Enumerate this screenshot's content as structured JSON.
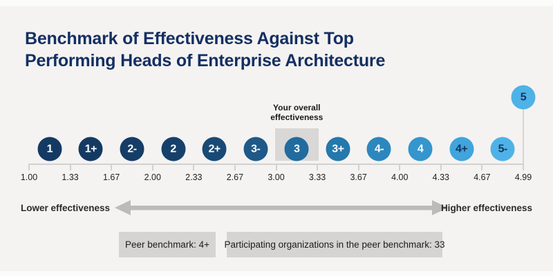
{
  "header": {
    "title_line1": "Benchmark of Effectiveness Against Top",
    "title_line2": "Performing Heads of Enterprise Architecture",
    "title_color": "#142f63"
  },
  "chart_data": {
    "type": "scale",
    "title": "Benchmark of Effectiveness Against Top Performing Heads of Enterprise Architecture",
    "axis": {
      "ticks": [
        "1.00",
        "1.33",
        "1.67",
        "2.00",
        "2.33",
        "2.67",
        "3.00",
        "3.33",
        "3.67",
        "4.00",
        "4.33",
        "4.67",
        "4.99"
      ],
      "range": [
        1.0,
        4.99
      ],
      "grid": false
    },
    "ratings": [
      {
        "label": "1",
        "fill": "#143a63",
        "text_color": "#ffffff"
      },
      {
        "label": "1+",
        "fill": "#143a63",
        "text_color": "#ffffff"
      },
      {
        "label": "2-",
        "fill": "#153d66",
        "text_color": "#ffffff"
      },
      {
        "label": "2",
        "fill": "#16406a",
        "text_color": "#ffffff"
      },
      {
        "label": "2+",
        "fill": "#184a75",
        "text_color": "#ffffff"
      },
      {
        "label": "3-",
        "fill": "#1e5988",
        "text_color": "#ffffff"
      },
      {
        "label": "3",
        "fill": "#216b9e",
        "text_color": "#ffffff",
        "highlighted": true
      },
      {
        "label": "3+",
        "fill": "#2478ac",
        "text_color": "#ffffff"
      },
      {
        "label": "4-",
        "fill": "#2c87be",
        "text_color": "#ffffff"
      },
      {
        "label": "4",
        "fill": "#3595cd",
        "text_color": "#ffffff"
      },
      {
        "label": "4+",
        "fill": "#41a4dc",
        "text_color": "#12355e"
      },
      {
        "label": "5-",
        "fill": "#4fb2e6",
        "text_color": "#12355e"
      },
      {
        "label": "5",
        "fill": "#4fb2e6",
        "text_color": "#12355e",
        "elevated": true
      }
    ],
    "your_overall_effectiveness": "3",
    "peer_benchmark": "4+",
    "participating_organizations": 33,
    "annotations": {
      "your_overall_label": "Your overall effectiveness"
    },
    "legend": {
      "lower_label": "Lower effectiveness",
      "higher_label": "Higher effectiveness"
    },
    "footer_boxes": {
      "peer_benchmark_label": "Peer benchmark: 4+",
      "participants_label": "Participating organizations in the peer benchmark: 33"
    }
  }
}
